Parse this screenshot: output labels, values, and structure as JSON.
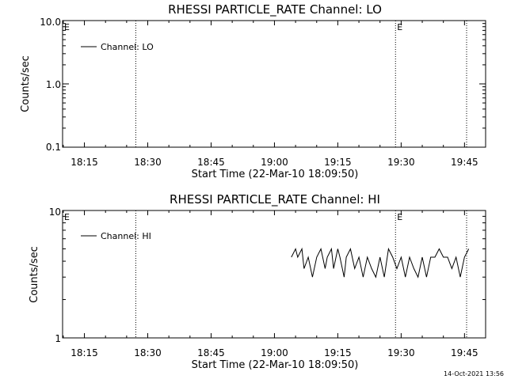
{
  "chart_data": [
    {
      "type": "line",
      "title": "RHESSI PARTICLE_RATE Channel: LO",
      "xlabel": "Start Time (22-Mar-10 18:09:50)",
      "ylabel": "Counts/sec",
      "y_scale": "log",
      "ylim": [
        0.1,
        10.0
      ],
      "y_ticks": [
        "10.0",
        "1.0",
        "0.1"
      ],
      "x_ticks": [
        "18:15",
        "18:30",
        "18:45",
        "19:00",
        "19:15",
        "19:30",
        "19:45"
      ],
      "xlim": [
        "18:09:50",
        "19:50:00"
      ],
      "legend": "Channel: LO",
      "legend_position": "top-left",
      "event_markers": [
        {
          "time": "18:09:50",
          "label": "E"
        },
        {
          "time": "19:28:40",
          "label": "E"
        }
      ],
      "vertical_lines": [
        "18:27:10",
        "19:28:40",
        "19:45:30"
      ],
      "series": [
        {
          "name": "Channel: LO",
          "values": []
        }
      ]
    },
    {
      "type": "line",
      "title": "RHESSI PARTICLE_RATE Channel: HI",
      "xlabel": "Start Time (22-Mar-10 18:09:50)",
      "ylabel": "Counts/sec",
      "y_scale": "log",
      "ylim": [
        1,
        10
      ],
      "y_ticks": [
        "10",
        "1"
      ],
      "x_ticks": [
        "18:15",
        "18:30",
        "18:45",
        "19:00",
        "19:15",
        "19:30",
        "19:45"
      ],
      "xlim": [
        "18:09:50",
        "19:50:00"
      ],
      "legend": "Channel: HI",
      "legend_position": "top-left",
      "event_markers": [
        {
          "time": "18:09:50",
          "label": "E"
        },
        {
          "time": "19:28:40",
          "label": "E"
        }
      ],
      "vertical_lines": [
        "18:27:10",
        "19:28:40",
        "19:45:30"
      ],
      "series": [
        {
          "name": "Channel: HI",
          "x": [
            "19:04:00",
            "19:05:00",
            "19:05:30",
            "19:06:30",
            "19:07:00",
            "19:08:00",
            "19:09:00",
            "19:10:00",
            "19:11:00",
            "19:12:00",
            "19:12:30",
            "19:13:30",
            "19:14:00",
            "19:15:00",
            "19:15:30",
            "19:16:30",
            "19:17:00",
            "19:18:00",
            "19:19:00",
            "19:20:00",
            "19:21:00",
            "19:22:00",
            "19:23:00",
            "19:24:00",
            "19:25:00",
            "19:26:00",
            "19:27:00",
            "19:28:00",
            "19:29:00",
            "19:30:00",
            "19:31:00",
            "19:32:00",
            "19:33:00",
            "19:34:00",
            "19:35:00",
            "19:36:00",
            "19:37:00",
            "19:38:00",
            "19:39:00",
            "19:40:00",
            "19:41:00",
            "19:42:00",
            "19:43:00",
            "19:44:00",
            "19:45:00",
            "19:46:00"
          ],
          "y": [
            4.3,
            5.0,
            4.3,
            5.0,
            3.5,
            4.3,
            3.0,
            4.3,
            5.0,
            3.5,
            4.3,
            5.0,
            3.5,
            5.0,
            4.3,
            3.0,
            4.3,
            5.0,
            3.5,
            4.3,
            3.0,
            4.3,
            3.5,
            3.0,
            4.3,
            3.0,
            5.0,
            4.3,
            3.5,
            4.3,
            3.0,
            4.3,
            3.5,
            3.0,
            4.3,
            3.0,
            4.3,
            4.3,
            5.0,
            4.3,
            4.3,
            3.5,
            4.3,
            3.0,
            4.3,
            5.0
          ]
        }
      ]
    }
  ],
  "timestamp": "14-Oct-2021 13:56"
}
